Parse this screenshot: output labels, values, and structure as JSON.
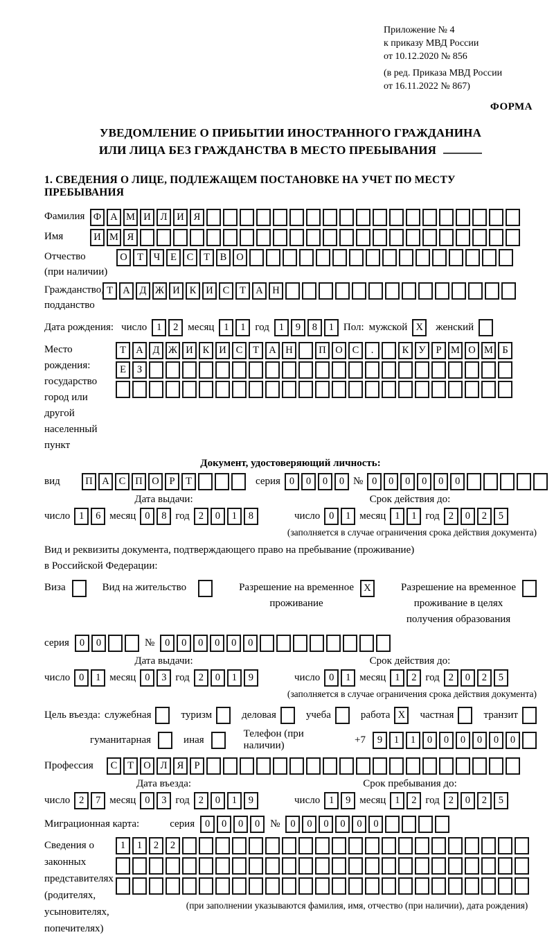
{
  "labels": {
    "day": "число",
    "month": "месяц",
    "year": "год",
    "seriya": "серия",
    "num": "№"
  },
  "header": {
    "line1": "Приложение № 4",
    "line2": "к приказу МВД России",
    "line3": "от 10.12.2020 № 856",
    "line4": "(в ред. Приказа МВД России",
    "line5": "от 16.11.2022 № 867)",
    "form_label": "ФОРМА"
  },
  "title": {
    "line1": "УВЕДОМЛЕНИЕ О ПРИБЫТИИ ИНОСТРАННОГО ГРАЖДАНИНА",
    "line2": "ИЛИ ЛИЦА БЕЗ ГРАЖДАНСТВА В МЕСТО ПРЕБЫВАНИЯ"
  },
  "section1_heading": "1. СВЕДЕНИЯ О ЛИЦЕ, ПОДЛЕЖАЩЕМ ПОСТАНОВКЕ НА УЧЕТ ПО МЕСТУ ПРЕБЫВАНИЯ",
  "person": {
    "lastname": {
      "label": "Фамилия",
      "boxes": {
        "value": "ФАМИЛИЯ",
        "count": 26
      }
    },
    "firstname": {
      "label": "Имя",
      "boxes": {
        "value": "ИМЯ",
        "count": 26
      }
    },
    "patronymic": {
      "label1": "Отчество",
      "label2": "(при наличии)",
      "boxes": {
        "value": "ОТЧЕСТВО",
        "count": 24
      }
    },
    "citizenship": {
      "label1": "Гражданство,",
      "label2": "подданство",
      "boxes": {
        "value": "ТАДЖИКИСТАН",
        "count": 25
      }
    },
    "birth": {
      "label": "Дата рождения:",
      "day": {
        "value": "12",
        "count": 2
      },
      "month": {
        "value": "11",
        "count": 2
      },
      "year": {
        "value": "1981",
        "count": 4
      },
      "gender_label": "Пол:",
      "male_label": "мужской",
      "male_checked": "X",
      "female_label": "женский",
      "female_checked": ""
    },
    "birthplace": {
      "label1": "Место рождения:",
      "label2": "государство",
      "label3": "город или другой",
      "label4": "населенный пункт",
      "row1": {
        "value": "ТАДЖИКИСТАН ПОС. КУРМОМБ",
        "count": 24
      },
      "row2": {
        "value": "ЕЗ",
        "count": 24
      },
      "row3": {
        "value": "",
        "count": 24
      }
    }
  },
  "identity_doc": {
    "heading": "Документ, удостоверяющий личность:",
    "vid_label": "вид",
    "vid": {
      "value": "ПАСПОРТ",
      "count": 10
    },
    "seriya": {
      "value": "0000",
      "count": 4
    },
    "num": {
      "value": "000000",
      "count": 11
    },
    "issue_label": "Дата выдачи:",
    "issue": {
      "day": {
        "value": "16",
        "count": 2
      },
      "month": {
        "value": "08",
        "count": 2
      },
      "year": {
        "value": "2018",
        "count": 4
      }
    },
    "expiry_label": "Срок действия до:",
    "expiry": {
      "day": {
        "value": "01",
        "count": 2
      },
      "month": {
        "value": "11",
        "count": 2
      },
      "year": {
        "value": "2025",
        "count": 4
      }
    },
    "note": "(заполняется в случае ограничения срока действия документа)"
  },
  "residence_doc": {
    "line1": "Вид и реквизиты документа, подтверждающего право на пребывание (проживание)",
    "line2": "в Российской Федерации:",
    "options": [
      {
        "label_lines": [
          "Виза"
        ],
        "checked": ""
      },
      {
        "label_lines": [
          "Вид на жительство"
        ],
        "checked": ""
      },
      {
        "label_lines": [
          "Разрешение на временное",
          "проживание"
        ],
        "checked": "X"
      },
      {
        "label_lines": [
          "Разрешение на временное",
          "проживание в целях",
          "получения образования"
        ],
        "checked": ""
      }
    ],
    "seriya": {
      "value": "00",
      "count": 4
    },
    "num": {
      "value": "000000",
      "count": 14
    },
    "issue_label": "Дата выдачи:",
    "issue": {
      "day": {
        "value": "01",
        "count": 2
      },
      "month": {
        "value": "03",
        "count": 2
      },
      "year": {
        "value": "2019",
        "count": 4
      }
    },
    "expiry_label": "Срок действия до:",
    "expiry": {
      "day": {
        "value": "01",
        "count": 2
      },
      "month": {
        "value": "12",
        "count": 2
      },
      "year": {
        "value": "2025",
        "count": 4
      }
    },
    "note": "(заполняется в случае ограничения срока действия документа)"
  },
  "visit": {
    "label": "Цель въезда:",
    "purposes": [
      {
        "label": "служебная",
        "checked": ""
      },
      {
        "label": "туризм",
        "checked": ""
      },
      {
        "label": "деловая",
        "checked": ""
      },
      {
        "label": "учеба",
        "checked": ""
      },
      {
        "label": "работа",
        "checked": "X"
      },
      {
        "label": "частная",
        "checked": ""
      },
      {
        "label": "транзит",
        "checked": ""
      },
      {
        "label": "гуманитарная",
        "checked": ""
      },
      {
        "label": "иная",
        "checked": ""
      }
    ],
    "phone_label": "Телефон (при наличии)",
    "phone_prefix": "+7",
    "phone": {
      "value": "911000000",
      "count": 10
    }
  },
  "profession": {
    "label": "Профессия",
    "boxes": {
      "value": "СТОЛЯР",
      "count": 25
    }
  },
  "entry": {
    "entry_label": "Дата въезда:",
    "entry_date": {
      "day": {
        "value": "27",
        "count": 2
      },
      "month": {
        "value": "03",
        "count": 2
      },
      "year": {
        "value": "2019",
        "count": 4
      }
    },
    "stay_label": "Срок пребывания до:",
    "stay_date": {
      "day": {
        "value": "19",
        "count": 2
      },
      "month": {
        "value": "12",
        "count": 2
      },
      "year": {
        "value": "2025",
        "count": 4
      }
    }
  },
  "migration_card": {
    "label": "Миграционная карта:",
    "seriya": {
      "value": "0000",
      "count": 4
    },
    "num": {
      "value": "000000",
      "count": 10
    }
  },
  "representatives": {
    "label_lines": [
      "Сведения о",
      "законных",
      "представителях",
      "(родителях,",
      "усыновителях,",
      "попечителях)"
    ],
    "row1": {
      "value": "1122",
      "count": 25
    },
    "row2": {
      "value": "",
      "count": 25
    },
    "row3": {
      "value": "",
      "count": 25
    },
    "note": "(при заполнении указываются фамилия, имя, отчество (при наличии), дата рождения)"
  }
}
